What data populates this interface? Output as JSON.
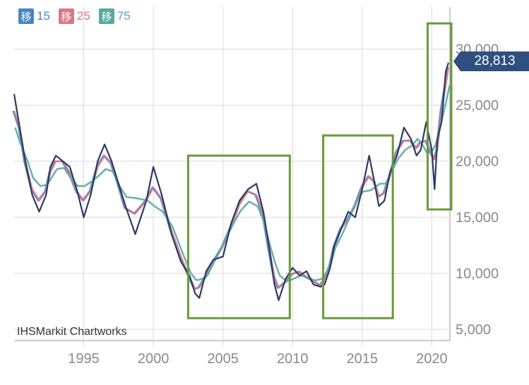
{
  "legend": [
    {
      "glyph": "移",
      "value": "15",
      "color": "#4a86c0"
    },
    {
      "glyph": "移",
      "value": "25",
      "color": "#d4788c"
    },
    {
      "glyph": "移",
      "value": "75",
      "color": "#5aa8a0"
    }
  ],
  "credit": "IHSMarkit Chartworks",
  "last_price_label": "28,813",
  "colors": {
    "price": "#2b3a67",
    "ma15": "#4a86c0",
    "ma25": "#d4788c",
    "ma75": "#5aa8a0",
    "highlight": "#6a9a3a",
    "badge": "#2f4f7f"
  },
  "chart_data": {
    "type": "line",
    "x_ticks": [
      "1995",
      "2000",
      "2005",
      "2010",
      "2015",
      "2020"
    ],
    "y_ticks": [
      "5,000",
      "10,000",
      "15,000",
      "20,000",
      "25,000",
      "30,000"
    ],
    "xlim": [
      1990.0,
      2021.3
    ],
    "ylim": [
      4000,
      32500
    ],
    "grid": true,
    "series": [
      {
        "name": "price",
        "x": [
          1990.0,
          1990.4,
          1990.8,
          1991.3,
          1991.8,
          1992.3,
          1992.6,
          1993.0,
          1993.5,
          1994.0,
          1994.5,
          1995.0,
          1995.5,
          1996.0,
          1996.5,
          1997.0,
          1997.5,
          1998.0,
          1998.7,
          1999.5,
          2000.0,
          2000.6,
          2001.3,
          2002.0,
          2002.6,
          2003.0,
          2003.3,
          2003.8,
          2004.3,
          2005.0,
          2005.6,
          2006.2,
          2006.8,
          2007.4,
          2007.9,
          2008.3,
          2008.7,
          2009.0,
          2009.5,
          2010.0,
          2010.5,
          2011.0,
          2011.5,
          2012.0,
          2012.3,
          2012.7,
          2013.0,
          2013.5,
          2014.0,
          2014.5,
          2015.0,
          2015.5,
          2015.9,
          2016.2,
          2016.6,
          2017.0,
          2017.5,
          2018.0,
          2018.5,
          2018.9,
          2019.2,
          2019.6,
          2020.0,
          2020.2,
          2020.4,
          2020.7,
          2021.0,
          2021.2
        ],
        "y": [
          26000,
          23000,
          20000,
          17000,
          15500,
          17000,
          19500,
          20500,
          20000,
          19500,
          17500,
          15000,
          17000,
          20000,
          21500,
          20000,
          18000,
          16000,
          13500,
          16500,
          19500,
          17000,
          13500,
          11000,
          9800,
          8200,
          7800,
          10200,
          11200,
          11500,
          14500,
          16500,
          17500,
          18000,
          15500,
          12500,
          9000,
          7600,
          9500,
          10500,
          9800,
          10200,
          9000,
          8800,
          9000,
          10500,
          12500,
          14000,
          15500,
          15000,
          17500,
          20500,
          18000,
          16000,
          16500,
          19000,
          20500,
          23000,
          22000,
          20500,
          21000,
          23500,
          21000,
          17500,
          22000,
          23500,
          28000,
          28800
        ]
      },
      {
        "name": "15",
        "color_key": "ma15",
        "x": [],
        "y": []
      },
      {
        "name": "25",
        "color_key": "ma25",
        "x": [],
        "y": []
      },
      {
        "name": "75",
        "color_key": "ma75",
        "x": [],
        "y": []
      }
    ],
    "highlight_boxes": [
      {
        "x0": 2002.5,
        "x1": 2009.8,
        "y0": 6000,
        "y1": 20500
      },
      {
        "x0": 2012.2,
        "x1": 2017.2,
        "y0": 6000,
        "y1": 22300
      },
      {
        "x0": 2019.7,
        "x1": 2021.4,
        "y0": 15700,
        "y1": 32300
      }
    ]
  }
}
